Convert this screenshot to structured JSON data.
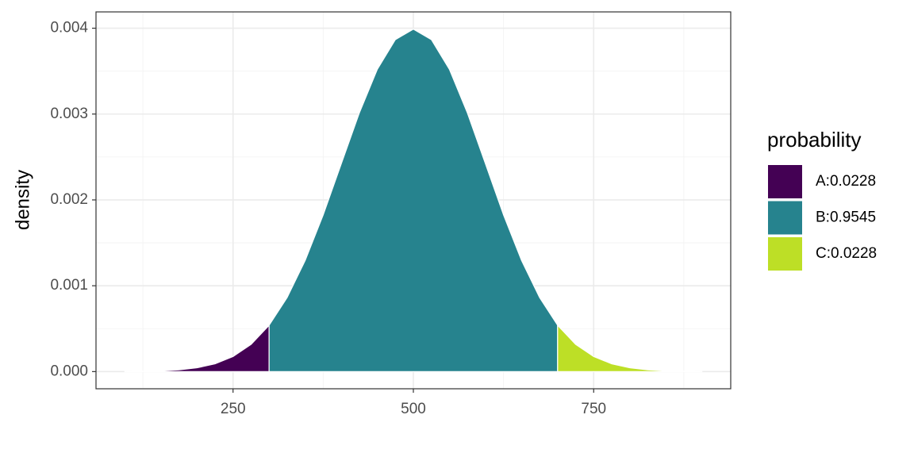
{
  "chart_data": {
    "type": "area",
    "y_label": "density",
    "legend_title": "probability",
    "legend": "right",
    "grid": true,
    "xlim": [
      60,
      940
    ],
    "ylim": [
      -0.0002,
      0.00419
    ],
    "xticks": [
      250,
      500,
      750
    ],
    "xminor": [
      125,
      375,
      625,
      875
    ],
    "yticks": [
      {
        "value": 0,
        "label": "0.000"
      },
      {
        "value": 0.001,
        "label": "0.001"
      },
      {
        "value": 0.002,
        "label": "0.002"
      },
      {
        "value": 0.003,
        "label": "0.003"
      },
      {
        "value": 0.004,
        "label": "0.004"
      }
    ],
    "yminor": [
      0.0005,
      0.0015,
      0.0025,
      0.0035
    ],
    "series": [
      {
        "name": "A:0.0228",
        "color": "#440154",
        "x": [
          100,
          125,
          150,
          175,
          200,
          225,
          250,
          275,
          300
        ],
        "values": [
          1.3e-06,
          3.5e-06,
          8.7e-06,
          2.03e-05,
          4.43e-05,
          9.09e-05,
          0.0001753,
          0.000317,
          0.00054
        ]
      },
      {
        "name": "B:0.9545",
        "color": "#26838e",
        "x": [
          300,
          325,
          350,
          375,
          400,
          425,
          450,
          475,
          500,
          525,
          550,
          575,
          600,
          625,
          650,
          675,
          700
        ],
        "values": [
          0.00054,
          0.000863,
          0.001295,
          0.001826,
          0.00242,
          0.003011,
          0.003521,
          0.003867,
          0.003989,
          0.003867,
          0.003521,
          0.003011,
          0.00242,
          0.001826,
          0.001295,
          0.000863,
          0.00054
        ]
      },
      {
        "name": "C:0.0228",
        "color": "#bddf26",
        "x": [
          700,
          725,
          750,
          775,
          800,
          825,
          850,
          875,
          900
        ],
        "values": [
          0.00054,
          0.000317,
          0.0001753,
          9.09e-05,
          4.43e-05,
          2.03e-05,
          8.7e-06,
          3.5e-06,
          1.3e-06
        ]
      }
    ]
  }
}
